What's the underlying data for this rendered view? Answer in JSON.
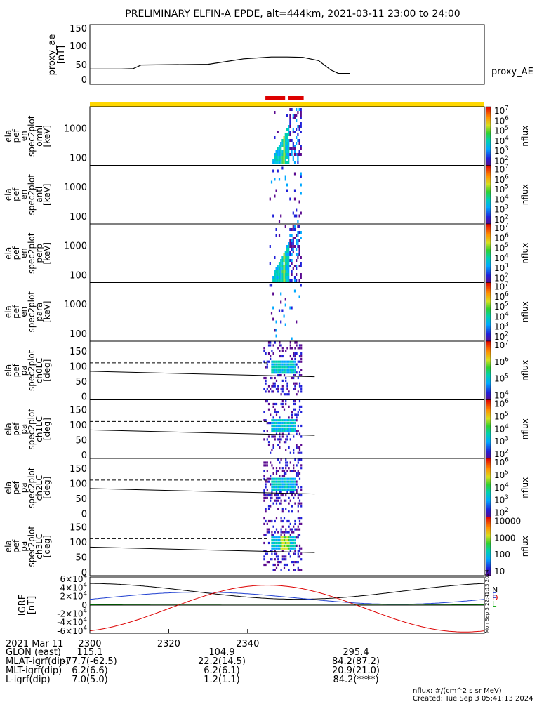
{
  "title": "PRELIMINARY ELFIN-A EPDE, alt=444km, 2021-03-11 23:00 to 24:00",
  "time_axis": {
    "start_minute": 2300,
    "end_minute": 2400,
    "date_label": "2021 Mar 11",
    "tick_labels": [
      "2300",
      "2320",
      "2340"
    ]
  },
  "ae_panel": {
    "ylabel_lines": [
      "proxy_ae",
      "[nT]"
    ],
    "series_label": "proxy_AE",
    "yticks": [
      "0",
      "50",
      "100",
      "150"
    ]
  },
  "science_zone_bars": {
    "color": "#dd0000",
    "ranges_minutes": [
      [
        2344.5,
        2349.5
      ],
      [
        2350.2,
        2354.2
      ]
    ]
  },
  "panels": [
    {
      "id": "omni",
      "ylabel_lines": [
        "ela",
        "pef",
        "en",
        "spec2plot",
        "omni",
        "[keV]"
      ],
      "yticks": [
        "100",
        "1000"
      ],
      "type": "energy",
      "strength": 1.0
    },
    {
      "id": "anti",
      "ylabel_lines": [
        "ela",
        "pef",
        "en",
        "spec2plot",
        "anti",
        "[keV]"
      ],
      "yticks": [
        "100",
        "1000"
      ],
      "type": "energy",
      "strength": 0.2
    },
    {
      "id": "perp",
      "ylabel_lines": [
        "ela",
        "pef",
        "en",
        "spec2plot",
        "perp",
        "[keV]"
      ],
      "yticks": [
        "100",
        "1000"
      ],
      "type": "energy",
      "strength": 0.95
    },
    {
      "id": "para",
      "ylabel_lines": [
        "ela",
        "pef",
        "en",
        "spec2plot",
        "para",
        "[keV]"
      ],
      "yticks": [
        "100",
        "1000"
      ],
      "type": "energy",
      "strength": 0.25
    },
    {
      "id": "ch0LC",
      "ylabel_lines": [
        "ela",
        "pef",
        "pa",
        "spec2plot",
        "ch0LC",
        "[deg]"
      ],
      "yticks": [
        "0",
        "50",
        "100",
        "150"
      ],
      "type": "pitch",
      "strength": 0.8
    },
    {
      "id": "ch1LC",
      "ylabel_lines": [
        "ela",
        "pef",
        "pa",
        "spec2plot",
        "ch1LC",
        "[deg]"
      ],
      "yticks": [
        "0",
        "50",
        "100",
        "150"
      ],
      "type": "pitch",
      "strength": 0.7
    },
    {
      "id": "ch2LC",
      "ylabel_lines": [
        "ela",
        "pef",
        "pa",
        "spec2plot",
        "ch2LC",
        "[deg]"
      ],
      "yticks": [
        "0",
        "50",
        "100",
        "150"
      ],
      "type": "pitch",
      "strength": 0.85
    },
    {
      "id": "ch3LC",
      "ylabel_lines": [
        "ela",
        "pef",
        "pa",
        "spec2plot",
        "ch3LC",
        "[deg]"
      ],
      "yticks": [
        "0",
        "50",
        "100",
        "150"
      ],
      "type": "pitch",
      "strength": 1.0
    }
  ],
  "colorbars": [
    {
      "label": "nflux",
      "tick_labels": [
        "10^2",
        "10^3",
        "10^4",
        "10^5",
        "10^6",
        "10^7"
      ]
    },
    {
      "label": "nflux",
      "tick_labels": [
        "10^2",
        "10^3",
        "10^4",
        "10^5",
        "10^6",
        "10^7"
      ]
    },
    {
      "label": "nflux",
      "tick_labels": [
        "10^2",
        "10^3",
        "10^4",
        "10^5",
        "10^6",
        "10^7"
      ]
    },
    {
      "label": "nflux",
      "tick_labels": [
        "10^2",
        "10^3",
        "10^4",
        "10^5",
        "10^6",
        "10^7"
      ]
    },
    {
      "label": "nflux",
      "tick_labels": [
        "10^4",
        "10^5",
        "10^6",
        "10^7"
      ]
    },
    {
      "label": "nflux",
      "tick_labels": [
        "10^2",
        "10^3",
        "10^4",
        "10^5",
        "10^6"
      ]
    },
    {
      "label": "nflux",
      "tick_labels": [
        "10^2",
        "10^3",
        "10^4",
        "10^5",
        "10^6"
      ]
    },
    {
      "label": "nflux",
      "tick_labels": [
        "10",
        "100",
        "1000",
        "10000"
      ]
    }
  ],
  "igrf_panel": {
    "ylabel_lines": [
      "IGRF",
      "[nT]"
    ],
    "yticks": [
      "-6×10^4",
      "-4×10^4",
      "-2×10^4",
      "0",
      "2×10^4",
      "4×10^4",
      "6×10^4"
    ],
    "legend": [
      {
        "label": "N",
        "color": "#000000"
      },
      {
        "label": "E",
        "color": "#1f3fd0"
      },
      {
        "label": "D",
        "color": "#dd0000"
      },
      {
        "label": "L",
        "color": "#00a000"
      }
    ],
    "side_stamp": "Mon Sep  3 22:41:13 2024"
  },
  "ephemeris": {
    "rows": [
      {
        "label": "GLON (east)",
        "values": [
          "115.1",
          "104.9",
          "295.4"
        ]
      },
      {
        "label": "MLAT-igrf(dip)",
        "values": [
          "-77.7(-62.5)",
          "22.2(14.5)",
          "84.2(87.2)"
        ]
      },
      {
        "label": "MLT-igrf(dip)",
        "values": [
          "6.2(6.6)",
          "6.2(6.1)",
          "20.9(21.0)"
        ]
      },
      {
        "label": "L-igrf(dip)",
        "values": [
          "7.0(5.0)",
          "1.2(1.1)",
          "84.2(****)"
        ]
      }
    ]
  },
  "footer": {
    "units": "nflux: #/(cm^2 s sr MeV)",
    "created": "Created: Tue Sep  3 05:41:13 2024"
  },
  "colors": {
    "yellow_bar": "#ffd700",
    "red_bar": "#dd0000"
  },
  "chart_data": {
    "type": "line",
    "x_label": "",
    "x_range_minutes": [
      2300,
      2400
    ],
    "series": [
      {
        "name": "proxy_AE",
        "x": [
          2300,
          2308,
          2311,
          2313,
          2330,
          2339,
          2346,
          2350,
          2354,
          2358,
          2361,
          2363,
          2366
        ],
        "values": [
          32,
          32,
          33,
          43,
          45,
          60,
          65,
          65,
          64,
          55,
          30,
          20,
          20
        ]
      }
    ],
    "ylim": [
      -5,
      155
    ]
  }
}
